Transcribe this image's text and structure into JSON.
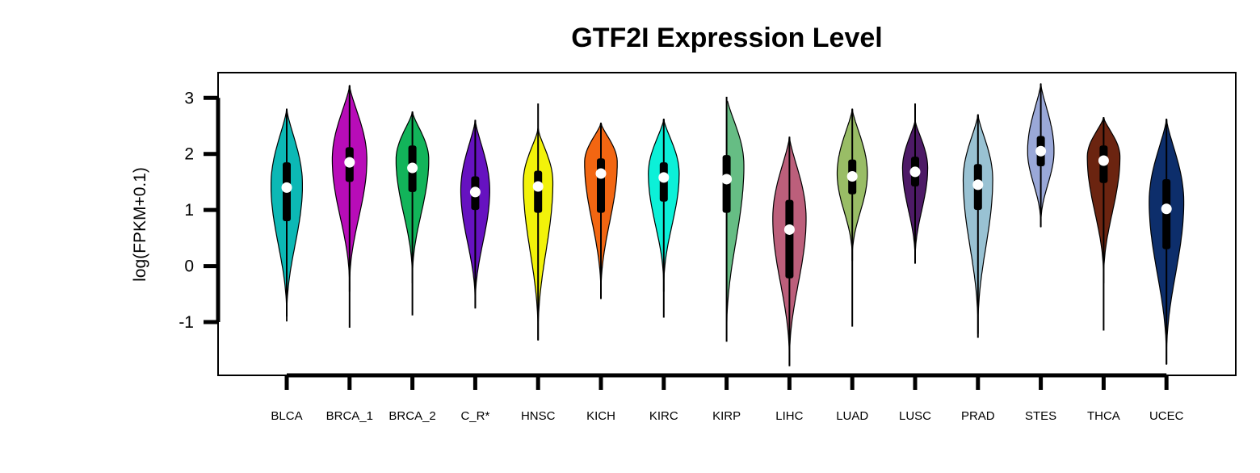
{
  "chart_data": {
    "type": "violin",
    "title": "GTF2I Expression Level",
    "ylabel": "log(FPKM+0.1)",
    "xlabel": "",
    "ylim": [
      -1.95,
      3.45
    ],
    "yticks": [
      -1,
      0,
      1,
      2,
      3
    ],
    "grid": false,
    "legend": "none",
    "series": [
      {
        "category": "BLCA",
        "color": "#0cb8b5",
        "min": -0.98,
        "max": 2.8,
        "q1": 0.8,
        "q3": 1.85,
        "median": 1.4,
        "wmin": -0.9,
        "wmax": 2.8,
        "peak": 1.45,
        "width": 0.5
      },
      {
        "category": "BRCA_1",
        "color": "#b80cb8",
        "min": -0.45,
        "max": 3.22,
        "q1": 1.5,
        "q3": 2.12,
        "median": 1.85,
        "wmin": -1.1,
        "wmax": 3.22,
        "peak": 1.9,
        "width": 0.55
      },
      {
        "category": "BRCA_2",
        "color": "#12b45a",
        "min": -0.3,
        "max": 2.75,
        "q1": 1.32,
        "q3": 2.15,
        "median": 1.75,
        "wmin": -0.88,
        "wmax": 2.75,
        "peak": 1.9,
        "width": 0.52
      },
      {
        "category": "C_R*",
        "color": "#6612c0",
        "min": -0.75,
        "max": 2.6,
        "q1": 1.0,
        "q3": 1.6,
        "median": 1.32,
        "wmin": -0.75,
        "wmax": 2.6,
        "peak": 1.35,
        "width": 0.46
      },
      {
        "category": "HNSC",
        "color": "#f2f20a",
        "min": -1.32,
        "max": 2.45,
        "q1": 0.95,
        "q3": 1.7,
        "median": 1.42,
        "wmin": -1.32,
        "wmax": 2.9,
        "peak": 1.5,
        "width": 0.47
      },
      {
        "category": "KICH",
        "color": "#f26612",
        "min": -0.58,
        "max": 2.55,
        "q1": 0.95,
        "q3": 1.92,
        "median": 1.65,
        "wmin": -0.58,
        "wmax": 2.55,
        "peak": 1.85,
        "width": 0.52
      },
      {
        "category": "KIRC",
        "color": "#0cf0d8",
        "min": -0.45,
        "max": 2.62,
        "q1": 1.15,
        "q3": 1.85,
        "median": 1.58,
        "wmin": -0.92,
        "wmax": 2.62,
        "peak": 1.65,
        "width": 0.49
      },
      {
        "category": "KIRP",
        "color": "#66bd84",
        "min": -1.3,
        "max": 3.02,
        "q1": 0.95,
        "q3": 1.98,
        "median": 1.55,
        "wmin": -1.35,
        "wmax": 3.02,
        "peak": 1.8,
        "width": 0.55
      },
      {
        "category": "LIHC",
        "color": "#bc5f7b",
        "min": -1.78,
        "max": 2.3,
        "q1": -0.22,
        "q3": 1.18,
        "median": 0.65,
        "wmin": -1.78,
        "wmax": 2.3,
        "peak": 0.85,
        "width": 0.53
      },
      {
        "category": "LUAD",
        "color": "#99bd66",
        "min": 0.1,
        "max": 2.8,
        "q1": 1.28,
        "q3": 1.9,
        "median": 1.6,
        "wmin": -1.08,
        "wmax": 2.8,
        "peak": 1.65,
        "width": 0.48
      },
      {
        "category": "LUSC",
        "color": "#4d1a66",
        "min": 0.05,
        "max": 2.6,
        "q1": 1.42,
        "q3": 1.95,
        "median": 1.68,
        "wmin": 0.05,
        "wmax": 2.9,
        "peak": 1.75,
        "width": 0.4
      },
      {
        "category": "PRAD",
        "color": "#99c2d3",
        "min": -1.2,
        "max": 2.7,
        "q1": 1.0,
        "q3": 1.82,
        "median": 1.45,
        "wmin": -1.28,
        "wmax": 2.7,
        "peak": 1.55,
        "width": 0.47
      },
      {
        "category": "STES",
        "color": "#9aa8d8",
        "min": 0.7,
        "max": 3.25,
        "q1": 1.78,
        "q3": 2.32,
        "median": 2.05,
        "wmin": 0.7,
        "wmax": 3.25,
        "peak": 2.05,
        "width": 0.42
      },
      {
        "category": "THCA",
        "color": "#6b2410",
        "min": -0.3,
        "max": 2.65,
        "q1": 1.48,
        "q3": 2.15,
        "median": 1.88,
        "wmin": -1.15,
        "wmax": 2.65,
        "peak": 1.95,
        "width": 0.52
      },
      {
        "category": "UCEC",
        "color": "#0d2e6b",
        "min": -1.75,
        "max": 2.62,
        "q1": 0.3,
        "q3": 1.55,
        "median": 1.02,
        "wmin": -1.75,
        "wmax": 2.62,
        "peak": 1.15,
        "width": 0.55
      }
    ]
  }
}
